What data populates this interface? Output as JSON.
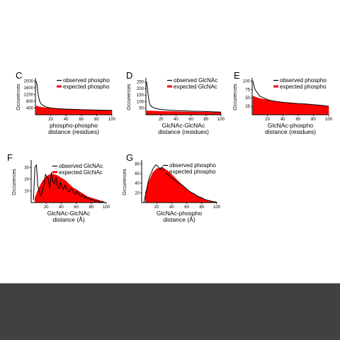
{
  "colors": {
    "observed": "#000000",
    "expected_fill": "#ff0000",
    "expected_line": "#cc0000",
    "bottom_band": "#414141"
  },
  "chart_data": [
    {
      "panel": "C",
      "type": "area",
      "xlabel": [
        "phospho-phospho",
        "distance (residues)"
      ],
      "ylabel": "Occurences",
      "xlim": [
        0,
        100
      ],
      "ylim": [
        0,
        2100
      ],
      "xticks": [
        20,
        40,
        60,
        80,
        100
      ],
      "yticks": [
        400,
        800,
        1200,
        1600,
        2000
      ],
      "tick_labels_x": [
        "20",
        "40",
        "60",
        "80",
        "100"
      ],
      "tick_labels_y": [
        "400",
        "800",
        "1200",
        "1600",
        "2000"
      ],
      "series": [
        {
          "name": "observed phospho",
          "x": [
            1,
            2,
            3,
            4,
            5,
            6,
            8,
            10,
            12,
            15,
            20,
            25,
            30,
            40,
            50,
            60,
            70,
            80,
            90,
            100
          ],
          "values": [
            2000,
            1800,
            1400,
            1100,
            900,
            750,
            620,
            560,
            500,
            450,
            400,
            380,
            360,
            330,
            320,
            300,
            290,
            280,
            270,
            260
          ]
        },
        {
          "name": "expected phospho",
          "x": [
            1,
            5,
            10,
            20,
            30,
            40,
            50,
            60,
            70,
            80,
            90,
            100
          ],
          "values": [
            520,
            470,
            430,
            390,
            360,
            340,
            320,
            300,
            290,
            275,
            265,
            255
          ]
        }
      ]
    },
    {
      "panel": "D",
      "type": "area",
      "xlabel": [
        "GlcNAc-GlcNAc",
        "distance (residues)"
      ],
      "ylabel": "Occurences",
      "xlim": [
        0,
        100
      ],
      "ylim": [
        0,
        270
      ],
      "xticks": [
        20,
        40,
        60,
        80,
        100
      ],
      "yticks": [
        50,
        100,
        150,
        200,
        250
      ],
      "tick_labels_x": [
        "20",
        "40",
        "60",
        "80",
        "100"
      ],
      "tick_labels_y": [
        "50",
        "100",
        "150",
        "200",
        "250"
      ],
      "series": [
        {
          "name": "observed GlcNAc",
          "x": [
            1,
            2,
            3,
            4,
            5,
            6,
            8,
            10,
            12,
            15,
            20,
            25,
            30,
            40,
            50,
            60,
            70,
            80,
            90,
            100
          ],
          "values": [
            250,
            200,
            150,
            110,
            85,
            70,
            60,
            55,
            50,
            45,
            40,
            38,
            35,
            32,
            30,
            28,
            26,
            25,
            22,
            20
          ]
        },
        {
          "name": "expected GlcNAc",
          "x": [
            1,
            10,
            20,
            30,
            40,
            50,
            60,
            70,
            80,
            90,
            100
          ],
          "values": [
            30,
            28,
            26,
            25,
            24,
            22,
            21,
            20,
            19,
            18,
            17
          ]
        }
      ]
    },
    {
      "panel": "E",
      "type": "area",
      "xlabel": [
        "GlcNAc-phospho",
        "distance (residues)"
      ],
      "ylabel": "Occurences",
      "xlim": [
        0,
        100
      ],
      "ylim": [
        0,
        105
      ],
      "xticks": [
        20,
        40,
        60,
        80,
        100
      ],
      "yticks": [
        25,
        50,
        75,
        100
      ],
      "tick_labels_x": [
        "20",
        "40",
        "60",
        "80",
        "100"
      ],
      "tick_labels_y": [
        "25",
        "50",
        "75",
        "100"
      ],
      "series": [
        {
          "name": "observed phospho",
          "x": [
            1,
            3,
            5,
            8,
            10,
            15,
            20,
            25,
            30,
            40,
            50,
            60,
            70,
            80,
            90,
            100
          ],
          "values": [
            100,
            80,
            70,
            62,
            55,
            50,
            45,
            42,
            40,
            37,
            35,
            33,
            32,
            30,
            28,
            25
          ]
        },
        {
          "name": "expected phospho",
          "x": [
            1,
            10,
            20,
            30,
            40,
            50,
            60,
            70,
            80,
            90,
            100
          ],
          "values": [
            55,
            48,
            44,
            40,
            37,
            35,
            33,
            31,
            29,
            27,
            25
          ]
        }
      ]
    },
    {
      "panel": "F",
      "type": "area",
      "xlabel": [
        "GlcNAc-GlcNAc",
        "distance (Å)"
      ],
      "ylabel": "Occurences",
      "xlim": [
        0,
        100
      ],
      "ylim": [
        0,
        35
      ],
      "xticks": [
        20,
        40,
        60,
        80,
        100
      ],
      "yticks": [
        10,
        20,
        30
      ],
      "tick_labels_x": [
        "20",
        "40",
        "60",
        "80",
        "100"
      ],
      "tick_labels_y": [
        "10",
        "20",
        "30"
      ],
      "series": [
        {
          "name": "observed GlcNAc",
          "x": [
            3,
            5,
            7,
            9,
            11,
            13,
            15,
            17,
            19,
            21,
            23,
            25,
            27,
            29,
            31,
            33,
            35,
            37,
            39,
            41,
            43,
            45,
            47,
            49,
            51,
            53,
            55,
            57,
            59,
            61,
            63,
            65,
            67,
            69,
            71,
            73,
            75,
            77,
            79,
            81,
            83,
            85,
            87,
            89,
            91,
            93,
            95,
            97,
            99
          ],
          "values": [
            2,
            30,
            32,
            14,
            8,
            6,
            10,
            15,
            24,
            22,
            20,
            12,
            26,
            18,
            16,
            22,
            14,
            12,
            17,
            13,
            11,
            15,
            12,
            10,
            9,
            12,
            11,
            8,
            7,
            10,
            8,
            6,
            5,
            7,
            4,
            5,
            3,
            4,
            2,
            3,
            2,
            1,
            2,
            1,
            1,
            0,
            1,
            0,
            0
          ]
        },
        {
          "name": "expected GlcNAc",
          "x": [
            5,
            10,
            15,
            20,
            25,
            30,
            35,
            40,
            45,
            50,
            55,
            60,
            65,
            70,
            75,
            80,
            85,
            90,
            95,
            100
          ],
          "values": [
            4,
            12,
            18,
            22,
            24,
            24,
            23,
            21,
            19,
            16,
            13,
            11,
            9,
            7,
            5,
            4,
            3,
            2,
            1,
            0
          ]
        }
      ]
    },
    {
      "panel": "G",
      "type": "area",
      "xlabel": [
        "GlcNAc-phospho",
        "distance (Å)"
      ],
      "ylabel": "Occurences",
      "xlim": [
        0,
        100
      ],
      "ylim": [
        0,
        85
      ],
      "xticks": [
        20,
        40,
        60,
        80,
        100
      ],
      "yticks": [
        20,
        40,
        60,
        80
      ],
      "tick_labels_x": [
        "20",
        "40",
        "60",
        "80",
        "100"
      ],
      "tick_labels_y": [
        "20",
        "40",
        "60",
        "80"
      ],
      "series": [
        {
          "name": "observed phospho",
          "x": [
            3,
            5,
            7,
            9,
            11,
            13,
            15,
            17,
            19,
            21,
            23,
            25,
            27,
            29,
            31,
            33,
            35,
            37,
            39,
            41,
            45,
            50,
            55,
            60,
            65,
            70,
            75,
            80,
            85,
            90,
            95,
            100
          ],
          "values": [
            0,
            15,
            30,
            45,
            55,
            62,
            70,
            74,
            78,
            76,
            72,
            68,
            74,
            70,
            64,
            60,
            58,
            55,
            52,
            50,
            45,
            40,
            35,
            28,
            22,
            18,
            13,
            10,
            6,
            4,
            2,
            1
          ]
        },
        {
          "name": "expected phospho",
          "x": [
            5,
            10,
            15,
            20,
            25,
            30,
            35,
            40,
            45,
            50,
            55,
            60,
            65,
            70,
            75,
            80,
            85,
            90,
            95,
            100
          ],
          "values": [
            20,
            45,
            62,
            70,
            72,
            70,
            65,
            58,
            50,
            42,
            35,
            28,
            22,
            17,
            12,
            9,
            6,
            4,
            2,
            1
          ]
        }
      ]
    }
  ]
}
